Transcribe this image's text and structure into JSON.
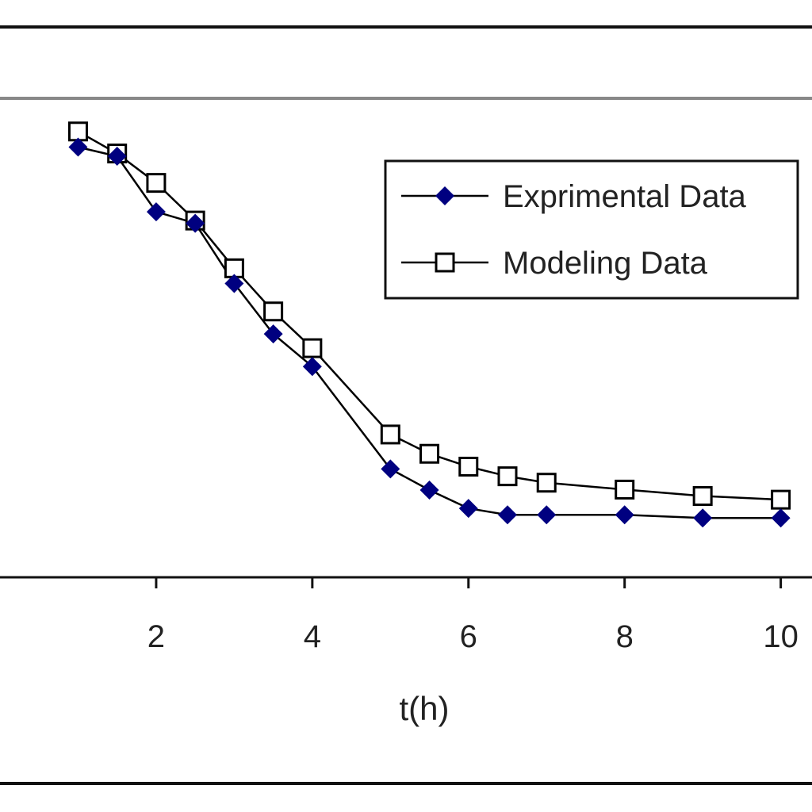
{
  "chart_data": {
    "type": "line",
    "title": "",
    "xlabel": "t(h)",
    "ylabel": "",
    "xlim": [
      0,
      10.4
    ],
    "ylim": [
      0,
      10
    ],
    "grid": false,
    "x_ticks": [
      "2",
      "4",
      "6",
      "8",
      "10"
    ],
    "legend_position": "top-right",
    "series": [
      {
        "name": "Exprimental Data",
        "marker": "filled-diamond",
        "color": "#000080",
        "x": [
          1,
          1.5,
          2,
          2.5,
          3,
          3.5,
          4,
          5,
          5.5,
          6,
          6.5,
          7,
          8,
          9,
          10
        ],
        "y": [
          9.37,
          9.17,
          7.96,
          7.71,
          6.4,
          5.3,
          4.59,
          2.36,
          1.9,
          1.5,
          1.36,
          1.36,
          1.36,
          1.29,
          1.29
        ]
      },
      {
        "name": "Modeling Data",
        "marker": "open-square",
        "color": "#000000",
        "x": [
          1,
          1.5,
          2,
          2.5,
          3,
          3.5,
          4,
          5,
          5.5,
          6,
          6.5,
          7,
          8,
          9,
          10
        ],
        "y": [
          9.71,
          9.23,
          8.59,
          7.77,
          6.73,
          5.79,
          4.99,
          3.11,
          2.69,
          2.41,
          2.2,
          2.06,
          1.91,
          1.77,
          1.69
        ]
      }
    ]
  }
}
